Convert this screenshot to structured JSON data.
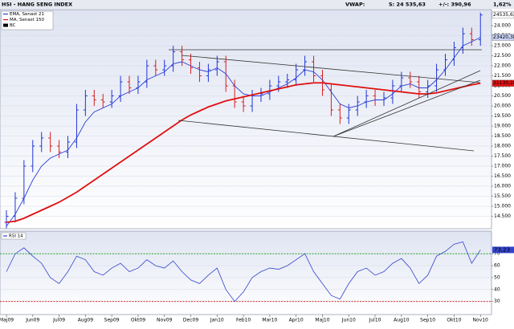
{
  "header": {
    "title": "HSI - HANG SENG INDEX",
    "vwap": "VWAP:",
    "last": "S: 24 535,63",
    "change": "+/-: 390,96",
    "pct": "1,62%"
  },
  "chart_data": [
    {
      "type": "ohlc",
      "categories": [
        "Maj09",
        null,
        null,
        "Jun09",
        null,
        null,
        "Jul09",
        null,
        null,
        "Aug09",
        null,
        null,
        "Sep09",
        null,
        null,
        "Okt09",
        null,
        null,
        "Nov09",
        null,
        null,
        "Dec09",
        null,
        null,
        "Jan10",
        null,
        null,
        "Feb10",
        null,
        null,
        "Mar10",
        null,
        null,
        "Apr10",
        null,
        null,
        "Maj10",
        null,
        null,
        "Jun10",
        null,
        null,
        "Jul10",
        null,
        null,
        "Aug10",
        null,
        null,
        "Sep10",
        null,
        null,
        "Okt10",
        null,
        null,
        "Nov10"
      ],
      "ohlc": {
        "name": "BC",
        "color": "#000000",
        "up_color": "#1f35d6",
        "down_color": "#d81e1e",
        "open": [
          14200,
          14500,
          15400,
          17000,
          18000,
          18400,
          18000,
          17700,
          18200,
          19800,
          20500,
          20300,
          20200,
          20500,
          21200,
          20900,
          21200,
          22000,
          21800,
          22000,
          22700,
          22300,
          21900,
          21500,
          21800,
          22200,
          21000,
          20200,
          20000,
          20500,
          20600,
          21000,
          21200,
          21300,
          21800,
          22200,
          21500,
          20800,
          19800,
          19400,
          19800,
          20200,
          20500,
          20300,
          20400,
          21000,
          21400,
          21200,
          20700,
          21000,
          21800,
          22300,
          22900,
          23600,
          23300
        ],
        "high": [
          14800,
          15700,
          17300,
          18300,
          18700,
          18700,
          18300,
          18500,
          20100,
          20800,
          20800,
          20600,
          20800,
          21500,
          21500,
          21500,
          22300,
          22300,
          22300,
          23000,
          23000,
          22600,
          22200,
          22100,
          22500,
          22500,
          21300,
          20500,
          20800,
          20900,
          21300,
          21500,
          21600,
          22100,
          22500,
          22500,
          21800,
          21100,
          20100,
          20100,
          20500,
          20800,
          20800,
          20700,
          21300,
          21700,
          21700,
          21500,
          21300,
          22100,
          22600,
          23200,
          23900,
          23900,
          24650
        ],
        "low": [
          13900,
          14200,
          15100,
          16700,
          17700,
          17700,
          17400,
          17400,
          17900,
          19500,
          20000,
          19900,
          19900,
          20200,
          20600,
          20600,
          20900,
          21500,
          21500,
          21700,
          22000,
          21600,
          21200,
          21200,
          21500,
          20700,
          19900,
          19700,
          19700,
          20200,
          20300,
          20700,
          20900,
          21000,
          21500,
          21200,
          20500,
          19500,
          19100,
          19100,
          19500,
          19900,
          20000,
          20000,
          20100,
          20700,
          20900,
          20400,
          20400,
          20700,
          21500,
          22000,
          22600,
          23000,
          23000
        ],
        "close": [
          14500,
          15400,
          17000,
          18000,
          18400,
          18000,
          17700,
          18200,
          19800,
          20500,
          20300,
          20200,
          20500,
          21200,
          20900,
          21200,
          22000,
          21800,
          22000,
          22700,
          22300,
          21900,
          21500,
          21800,
          22200,
          21000,
          20200,
          20000,
          20500,
          20600,
          21000,
          21200,
          21300,
          21800,
          22200,
          21500,
          20800,
          19800,
          19400,
          19800,
          20200,
          20500,
          20300,
          20400,
          21000,
          21400,
          21200,
          20700,
          21000,
          21800,
          22300,
          22900,
          23600,
          23300,
          24535.63
        ]
      },
      "series": [
        {
          "name": "EMA, Senast 21",
          "color": "#2a3fd8",
          "values": [
            14000,
            14600,
            15400,
            16300,
            17000,
            17400,
            17600,
            17800,
            18400,
            19200,
            19700,
            19900,
            20100,
            20500,
            20700,
            20900,
            21300,
            21500,
            21700,
            22100,
            22200,
            22000,
            21800,
            21700,
            21900,
            21600,
            21000,
            20600,
            20500,
            20500,
            20700,
            20900,
            21100,
            21400,
            21800,
            21700,
            21300,
            20700,
            20100,
            19900,
            20000,
            20200,
            20300,
            20300,
            20600,
            21000,
            21100,
            20900,
            20900,
            21300,
            21800,
            22400,
            23000,
            23200,
            23420.38
          ]
        },
        {
          "name": "MA, Senast 150",
          "color": "#e01010",
          "values": [
            14200,
            14250,
            14400,
            14600,
            14800,
            15000,
            15200,
            15450,
            15700,
            16000,
            16300,
            16600,
            16900,
            17200,
            17500,
            17800,
            18100,
            18400,
            18700,
            19000,
            19300,
            19550,
            19750,
            19950,
            20100,
            20250,
            20350,
            20450,
            20550,
            20650,
            20750,
            20850,
            20950,
            21050,
            21100,
            21150,
            21150,
            21100,
            21050,
            21000,
            20950,
            20900,
            20850,
            20800,
            20750,
            20700,
            20650,
            20600,
            20600,
            20650,
            20750,
            20850,
            20950,
            21050,
            21130.18
          ]
        }
      ],
      "last_labels": [
        {
          "value": 24535.63,
          "label": "24535,63",
          "color": "#ffffff",
          "text_color": "#000000"
        },
        {
          "value": 23420.38,
          "label": "23420,38",
          "color": "#c8d0f4",
          "text_color": "#000000"
        },
        {
          "value": 21130.18,
          "label": "21130,18",
          "color": "#e01010",
          "text_color": "#ffffff"
        }
      ],
      "ylim": [
        13880,
        24800
      ],
      "yticks": [
        {
          "value": 14500,
          "label": "14.500"
        },
        {
          "value": 15000,
          "label": "15.000"
        },
        {
          "value": 15500,
          "label": "15.500"
        },
        {
          "value": 16000,
          "label": "16.000"
        },
        {
          "value": 16500,
          "label": "16.500"
        },
        {
          "value": 17000,
          "label": "17.000"
        },
        {
          "value": 17500,
          "label": "17.500"
        },
        {
          "value": 18000,
          "label": "18.000"
        },
        {
          "value": 18500,
          "label": "18.500"
        },
        {
          "value": 19000,
          "label": "19.000"
        },
        {
          "value": 19500,
          "label": "19.500"
        },
        {
          "value": 20000,
          "label": "20.000"
        },
        {
          "value": 20500,
          "label": "20.500"
        },
        {
          "value": 21000,
          "label": "21.000"
        },
        {
          "value": 21500,
          "label": "21.500"
        },
        {
          "value": 22000,
          "label": "22.000"
        },
        {
          "value": 22500,
          "label": "22.500"
        },
        {
          "value": 23000,
          "label": "23.000"
        },
        {
          "value": 23500,
          "label": "23.500"
        },
        {
          "value": 24000,
          "label": "24.000"
        }
      ],
      "grid": true,
      "legend": "upper left"
    },
    {
      "type": "line",
      "series": [
        {
          "name": "RSI 14",
          "color": "#3344cc",
          "values": [
            55,
            70,
            75,
            68,
            62,
            50,
            45,
            55,
            68,
            65,
            55,
            52,
            58,
            62,
            55,
            58,
            65,
            60,
            58,
            64,
            55,
            48,
            45,
            52,
            58,
            40,
            30,
            38,
            50,
            55,
            58,
            57,
            60,
            65,
            70,
            55,
            45,
            35,
            32,
            45,
            55,
            58,
            52,
            55,
            62,
            66,
            58,
            45,
            52,
            68,
            72,
            78,
            80,
            62,
            73.23
          ],
          "value_labels": [
            null,
            null,
            null,
            null,
            null,
            null,
            null,
            null,
            null,
            null,
            null,
            null,
            null,
            null,
            null,
            null,
            null,
            null,
            null,
            null,
            null,
            null,
            null,
            null,
            null,
            null,
            null,
            null,
            null,
            null,
            null,
            null,
            null,
            null,
            null,
            null,
            null,
            null,
            null,
            null,
            null,
            null,
            null,
            null,
            null,
            null,
            null,
            null,
            null,
            null,
            null,
            null,
            null,
            null,
            "73,23"
          ]
        }
      ],
      "ref_lines": [
        {
          "value": 70,
          "color": "#10a010"
        },
        {
          "value": 30,
          "color": "#d01010"
        }
      ],
      "ylim": [
        19,
        89
      ],
      "yticks": [
        30,
        40,
        50,
        60,
        70
      ],
      "grid": true,
      "legend": "upper left"
    }
  ]
}
